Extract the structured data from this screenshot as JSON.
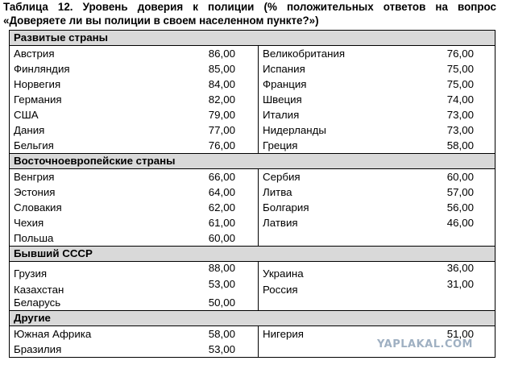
{
  "caption": {
    "line1": "Таблица 12. Уровень доверия к полиции (% положительных ответов на вопрос",
    "line2": "«Доверяете ли вы полиции в своем населенном пункте?»)"
  },
  "sections": [
    {
      "title": "Развитые страны",
      "left": [
        {
          "name": "Австрия",
          "value": "86,00"
        },
        {
          "name": "Финляндия",
          "value": "85,00"
        },
        {
          "name": "Норвегия",
          "value": "84,00"
        },
        {
          "name": "Германия",
          "value": "82,00"
        },
        {
          "name": "США",
          "value": "79,00"
        },
        {
          "name": "Дания",
          "value": "77,00"
        },
        {
          "name": "Бельгия",
          "value": "76,00"
        }
      ],
      "right": [
        {
          "name": "Великобритания",
          "value": "76,00"
        },
        {
          "name": "Испания",
          "value": "75,00"
        },
        {
          "name": "Франция",
          "value": "75,00"
        },
        {
          "name": "Швеция",
          "value": "74,00"
        },
        {
          "name": "Италия",
          "value": "73,00"
        },
        {
          "name": "Нидерланды",
          "value": "73,00"
        },
        {
          "name": "Греция",
          "value": "58,00"
        }
      ]
    },
    {
      "title": "Восточноевропейские страны",
      "left": [
        {
          "name": "Венгрия",
          "value": "66,00"
        },
        {
          "name": "Эстония",
          "value": "64,00"
        },
        {
          "name": "Словакия",
          "value": "62,00"
        },
        {
          "name": "Чехия",
          "value": "61,00"
        },
        {
          "name": "Польша",
          "value": "60,00"
        }
      ],
      "right": [
        {
          "name": "Сербия",
          "value": "60,00"
        },
        {
          "name": "Литва",
          "value": "57,00"
        },
        {
          "name": "Болгария",
          "value": "56,00"
        },
        {
          "name": "Латвия",
          "value": "46,00"
        }
      ]
    },
    {
      "title": "Бывший СССР",
      "left": [
        {
          "name": "Грузия",
          "value": "88,00"
        },
        {
          "name": "Казахстан",
          "value": "53,00"
        },
        {
          "name": "Беларусь",
          "value": "50,00"
        }
      ],
      "right": [
        {
          "name": "Украина",
          "value": "36,00"
        },
        {
          "name": "Россия",
          "value": "31,00"
        }
      ]
    },
    {
      "title": "Другие",
      "left": [
        {
          "name": "Южная Африка",
          "value": "58,00"
        },
        {
          "name": "Бразилия",
          "value": "53,00"
        }
      ],
      "right": [
        {
          "name": "Нигерия",
          "value": "51,00"
        }
      ]
    }
  ],
  "watermark": "YAPLAKAL.COM"
}
